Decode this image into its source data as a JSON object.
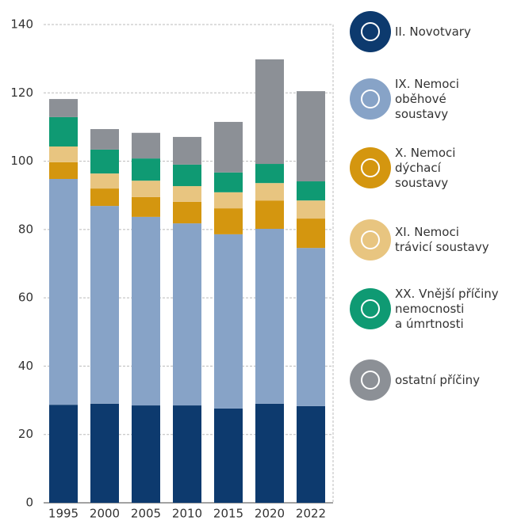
{
  "chart_data": {
    "type": "stacked_bar",
    "categories": [
      "1995",
      "2000",
      "2005",
      "2010",
      "2015",
      "2020",
      "2022"
    ],
    "series": [
      {
        "name": "II. Novotvary",
        "color": "#0d3a6e",
        "values": [
          28.7,
          29,
          28.5,
          28.5,
          27.6,
          29,
          28.3
        ]
      },
      {
        "name": "IX. Nemoci\noběhové\nsoustavy",
        "color": "#87a3c7",
        "values": [
          66.1,
          57.9,
          55.2,
          53.3,
          51,
          51.2,
          46.3
        ]
      },
      {
        "name": "X. Nemoci\ndýchací\nsoustavy",
        "color": "#d4960f",
        "values": [
          4.9,
          5.1,
          5.8,
          6.3,
          7.6,
          8.3,
          8.6
        ]
      },
      {
        "name": "XI. Nemoci\ntrávicí soustavy",
        "color": "#e8c580",
        "values": [
          4.6,
          4.4,
          4.8,
          4.6,
          4.7,
          5.1,
          5.3
        ]
      },
      {
        "name": "XX. Vnější příčiny\nnemocnosti\na úmrtnosti",
        "color": "#0f9a73",
        "values": [
          8.6,
          7,
          6.5,
          6.3,
          5.8,
          5.6,
          5.6
        ]
      },
      {
        "name": "ostatní příčiny",
        "color": "#8c9096",
        "values": [
          5.3,
          6,
          7.5,
          8.1,
          14.8,
          30.6,
          26.4
        ]
      }
    ],
    "ylim": [
      0,
      140
    ],
    "yticks": [
      0,
      20,
      40,
      60,
      80,
      100,
      120,
      140
    ],
    "grid": true,
    "legend": "right"
  }
}
